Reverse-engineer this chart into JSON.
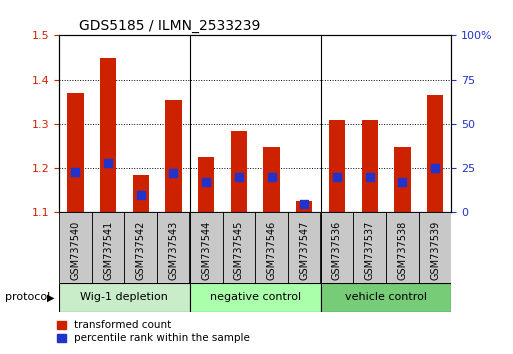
{
  "title": "GDS5185 / ILMN_2533239",
  "samples": [
    "GSM737540",
    "GSM737541",
    "GSM737542",
    "GSM737543",
    "GSM737544",
    "GSM737545",
    "GSM737546",
    "GSM737547",
    "GSM737536",
    "GSM737537",
    "GSM737538",
    "GSM737539"
  ],
  "transformed_count": [
    1.37,
    1.448,
    1.185,
    1.355,
    1.225,
    1.285,
    1.248,
    1.125,
    1.308,
    1.308,
    1.248,
    1.365
  ],
  "percentile_rank": [
    23,
    28,
    10,
    22,
    17,
    20,
    20,
    5,
    20,
    20,
    17,
    25
  ],
  "groups": [
    {
      "label": "Wig-1 depletion",
      "start": 0,
      "end": 4,
      "color": "#c8edc8"
    },
    {
      "label": "negative control",
      "start": 4,
      "end": 8,
      "color": "#aaffaa"
    },
    {
      "label": "vehicle control",
      "start": 8,
      "end": 12,
      "color": "#77cc77"
    }
  ],
  "ylim_left": [
    1.1,
    1.5
  ],
  "ylim_right": [
    0,
    100
  ],
  "yticks_left": [
    1.1,
    1.2,
    1.3,
    1.4,
    1.5
  ],
  "yticks_right": [
    0,
    25,
    50,
    75,
    100
  ],
  "bar_color": "#cc2200",
  "dot_color": "#2233cc",
  "bar_width": 0.5,
  "dot_size": 40,
  "left_tick_color": "#cc2200",
  "right_tick_color": "#2233cc",
  "grid_color": "#000000",
  "tick_area_color": "#c8c8c8",
  "background_color": "#ffffff",
  "legend_labels": [
    "transformed count",
    "percentile rank within the sample"
  ],
  "protocol_label": "protocol"
}
